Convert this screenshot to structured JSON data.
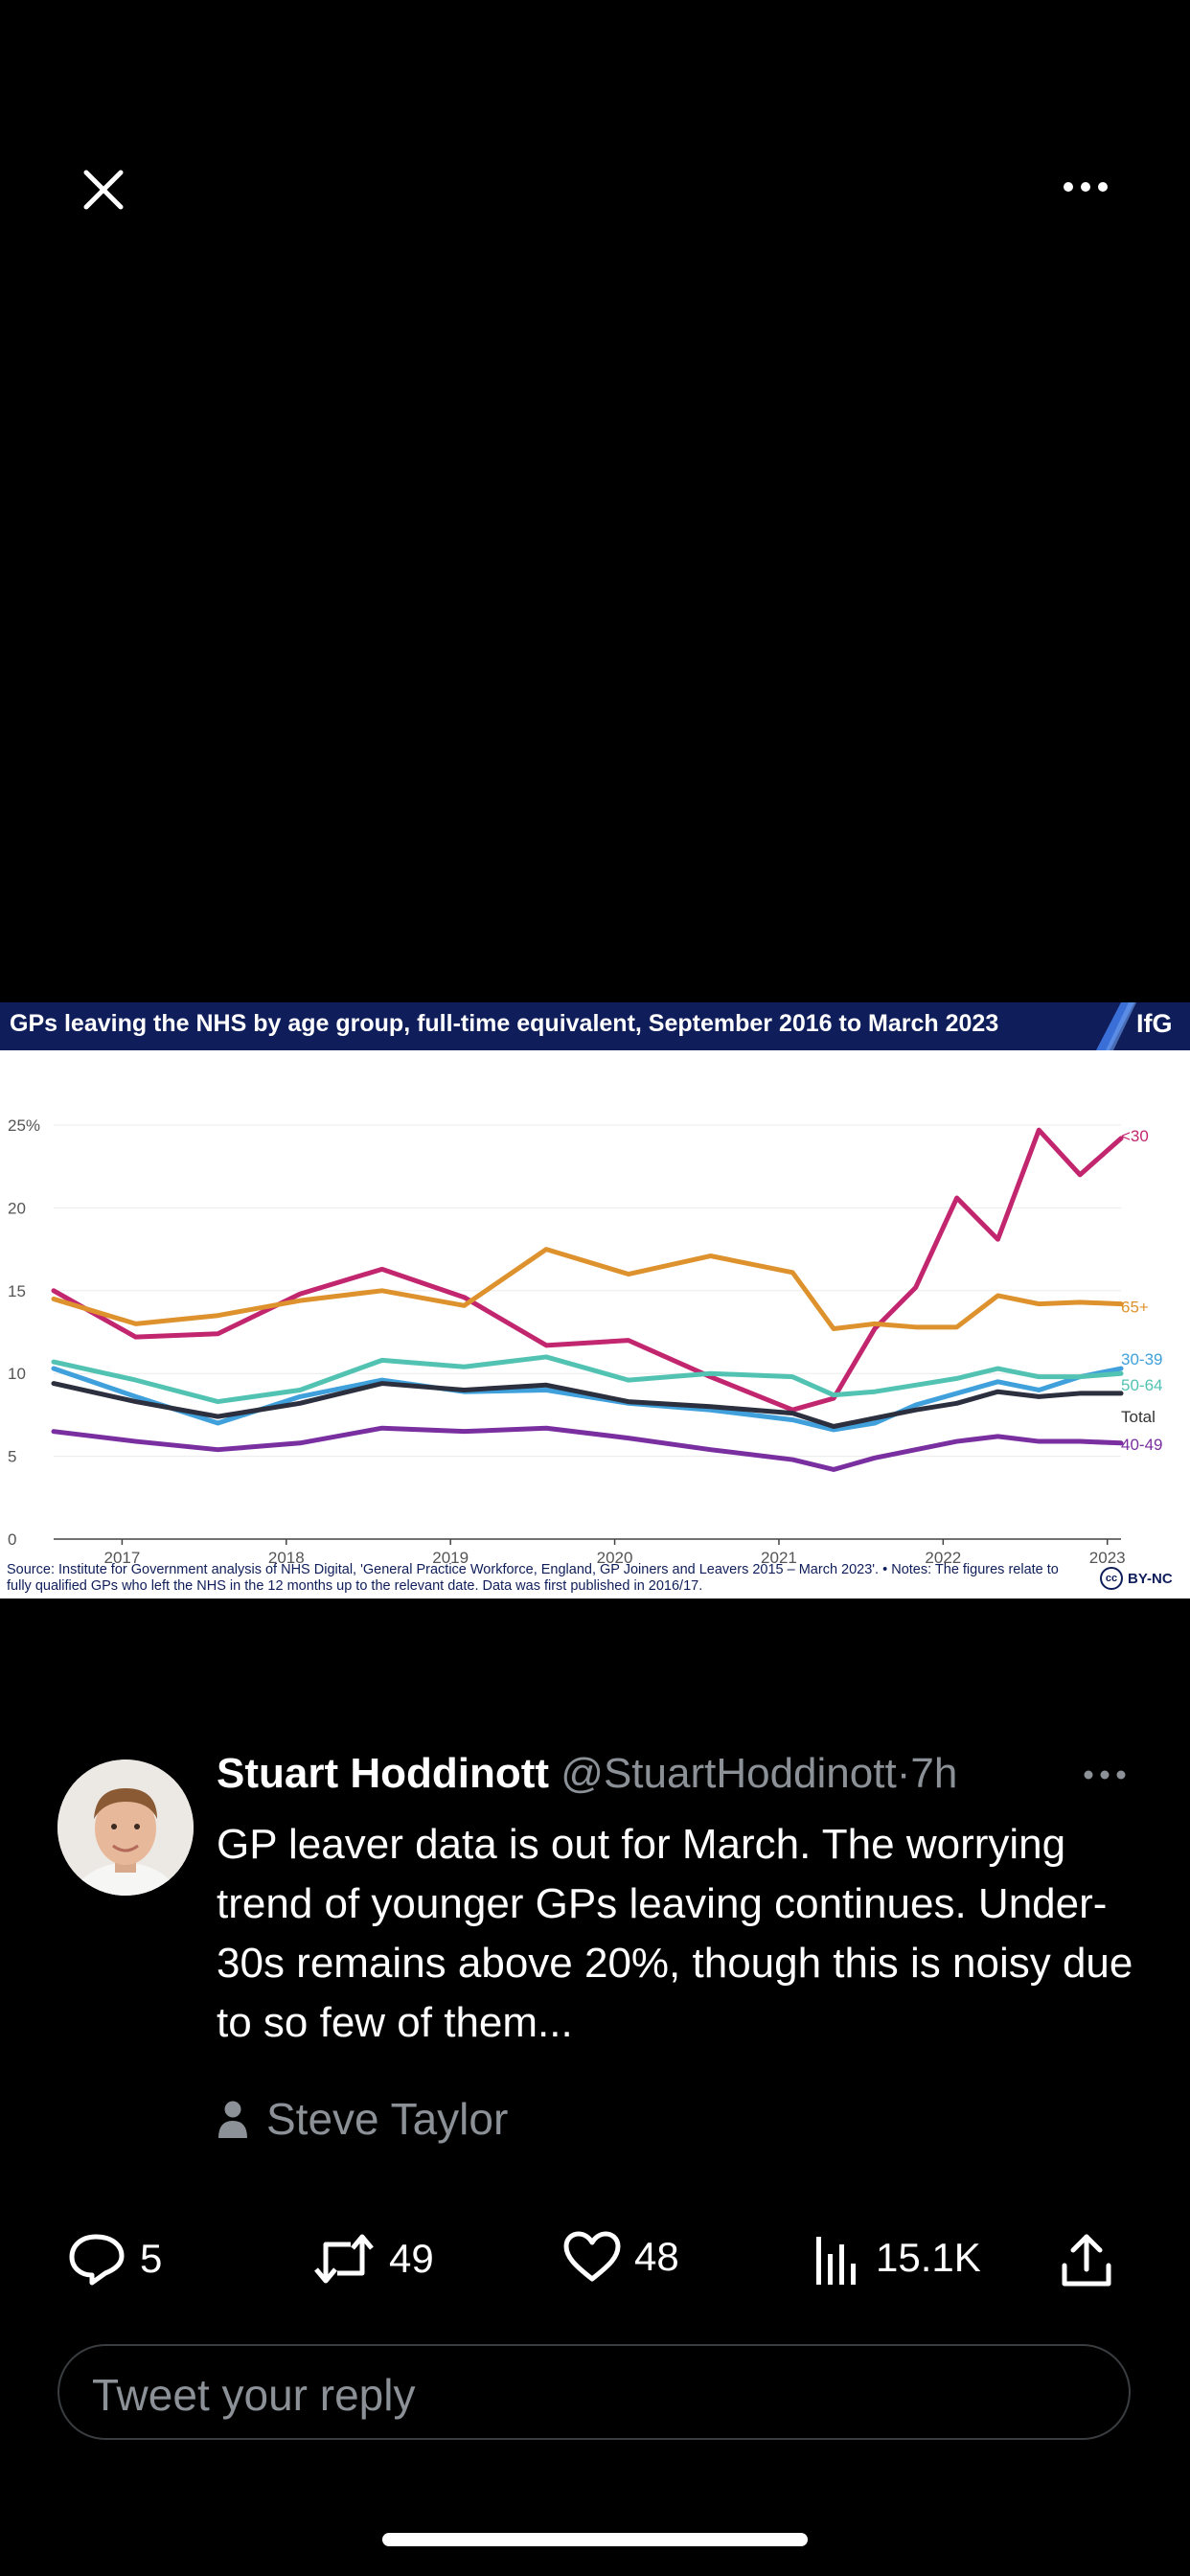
{
  "viewer": {
    "close_icon": "close-icon",
    "more_icon": "more-horizontal-icon"
  },
  "chart_card": {
    "title": "GPs leaving the NHS by age group, full-time equivalent, September 2016 to March 2023",
    "logo": "IfG",
    "source": "Source: Institute for Government analysis of NHS Digital, 'General Practice Workforce, England, GP Joiners and Leavers 2015 – March 2023'. • Notes: The figures relate to fully qualified GPs who left the NHS in the 12 months up to the relevant date. Data was first published in 2016/17.",
    "license_icon": "cc",
    "license": "BY-NC",
    "header_color": "#0f1e5a"
  },
  "chart_data": {
    "type": "line",
    "title": "GPs leaving the NHS by age group, full-time equivalent, September 2016 to March 2023",
    "x_ticks": [
      "2017",
      "2018",
      "2019",
      "2020",
      "2021",
      "2022",
      "2023"
    ],
    "x": [
      "Sep 2016",
      "Mar 2017",
      "Sep 2017",
      "Mar 2018",
      "Sep 2018",
      "Mar 2019",
      "Sep 2019",
      "Mar 2020",
      "Sep 2020",
      "Mar 2021",
      "Jun 2021",
      "Sep 2021",
      "Dec 2021",
      "Mar 2022",
      "Jun 2022",
      "Sep 2022",
      "Dec 2022",
      "Mar 2023"
    ],
    "y_ticks": [
      "25%",
      "20",
      "15",
      "10",
      "5",
      "0"
    ],
    "ylim": [
      0,
      25
    ],
    "grid": true,
    "legend": "right-end labels",
    "series": [
      {
        "name": "<30",
        "color": "#c2266f",
        "values": [
          15.0,
          12.2,
          12.4,
          14.8,
          16.3,
          14.6,
          11.7,
          12.0,
          9.8,
          7.8,
          8.5,
          12.7,
          15.2,
          20.6,
          18.1,
          24.7,
          22.0,
          24.2
        ]
      },
      {
        "name": "65+",
        "color": "#de922d",
        "values": [
          14.5,
          13.0,
          13.5,
          14.4,
          15.0,
          14.1,
          17.5,
          16.0,
          17.1,
          16.1,
          12.7,
          13.0,
          12.8,
          12.8,
          14.7,
          14.2,
          14.3,
          14.2
        ]
      },
      {
        "name": "30-39",
        "color": "#3fa0db",
        "values": [
          10.3,
          8.6,
          7.0,
          8.6,
          9.6,
          8.9,
          9.0,
          8.2,
          7.8,
          7.2,
          6.6,
          7.0,
          8.1,
          8.8,
          9.5,
          9.0,
          9.8,
          10.3
        ]
      },
      {
        "name": "50-64",
        "color": "#52c3b3",
        "values": [
          10.7,
          9.6,
          8.3,
          9.0,
          10.8,
          10.4,
          11.0,
          9.6,
          10.0,
          9.8,
          8.7,
          8.9,
          9.3,
          9.7,
          10.3,
          9.8,
          9.8,
          10.0
        ]
      },
      {
        "name": "Total",
        "color": "#2b2f3e",
        "values": [
          9.4,
          8.3,
          7.4,
          8.2,
          9.4,
          9.0,
          9.3,
          8.3,
          8.0,
          7.6,
          6.8,
          7.3,
          7.8,
          8.2,
          8.9,
          8.6,
          8.8,
          8.8
        ]
      },
      {
        "name": "40-49",
        "color": "#7a2fa0",
        "values": [
          6.5,
          5.9,
          5.4,
          5.8,
          6.7,
          6.5,
          6.7,
          6.1,
          5.4,
          4.8,
          4.2,
          4.9,
          5.4,
          5.9,
          6.2,
          5.9,
          5.9,
          5.8
        ]
      }
    ]
  },
  "tweet": {
    "name": "Stuart Hoddinott",
    "handle": "@StuartHoddinott",
    "separator": "·",
    "time": "7h",
    "text": "GP leaver data is out for March. The worrying trend of younger GPs leaving continues. Under-30s remains above 20%, though this is noisy due to so few of them...",
    "mention": "Steve Taylor",
    "avatar_icon": "avatar"
  },
  "actions": {
    "replies": "5",
    "retweets": "49",
    "likes": "48",
    "views": "15.1K"
  },
  "reply_input": {
    "placeholder": "Tweet your reply"
  }
}
